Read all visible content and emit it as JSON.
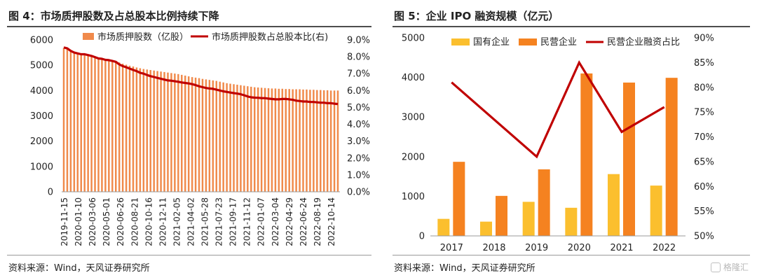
{
  "left": {
    "title": "图 4：市场质押股数及占总股本比例持续下降",
    "source": "资料来源：Wind，天风证券研究所",
    "chart_data": {
      "type": "bar",
      "legend": [
        "市场质押股数（亿股）",
        "市场质押股数占总股本比(右)"
      ],
      "y_left_ticks": [
        "0",
        "1000",
        "2000",
        "3000",
        "4000",
        "5000",
        "6000"
      ],
      "y_left_range": [
        0,
        6000
      ],
      "y_right_ticks": [
        "0.0%",
        "1.0%",
        "2.0%",
        "3.0%",
        "4.0%",
        "5.0%",
        "6.0%",
        "7.0%",
        "8.0%",
        "9.0%"
      ],
      "y_right_range": [
        0,
        9
      ],
      "x_ticks": [
        "2019-11-15",
        "2020-01-10",
        "2020-03-06",
        "2020-05-01",
        "2020-06-26",
        "2020-08-21",
        "2020-10-16",
        "2020-12-11",
        "2021-02-05",
        "2021-04-02",
        "2021-05-28",
        "2021-07-23",
        "2021-09-17",
        "2021-11-12",
        "2022-01-07",
        "2022-03-04",
        "2022-04-29",
        "2022-06-24",
        "2022-08-19",
        "2022-10-14"
      ],
      "series": [
        {
          "name": "市场质押股数（亿股）",
          "axis": "left",
          "values": [
            5680,
            5650,
            5600,
            5540,
            5480,
            5440,
            5410,
            5390,
            5360,
            5330,
            5290,
            5250,
            5220,
            5200,
            5180,
            5150,
            5110,
            5060,
            5020,
            4980,
            4950,
            4910,
            4880,
            4850,
            4830,
            4810,
            4790,
            4770,
            4750,
            4730,
            4710,
            4690,
            4670,
            4650,
            4620,
            4590,
            4560,
            4530,
            4510,
            4490,
            4460,
            4440,
            4420,
            4400,
            4380,
            4350,
            4320,
            4290,
            4270,
            4250,
            4230,
            4210,
            4190,
            4170,
            4150,
            4130,
            4120,
            4110,
            4100,
            4090,
            4080,
            4080,
            4070,
            4070,
            4060,
            4060,
            4050,
            4050,
            4050,
            4040,
            4040,
            4030,
            4030,
            4020,
            4020,
            4010,
            4010,
            4000,
            4000,
            4000
          ]
        },
        {
          "name": "市场质押股数占总股本比(右)",
          "axis": "right",
          "values": [
            8.55,
            8.5,
            8.35,
            8.25,
            8.2,
            8.15,
            8.15,
            8.1,
            8.05,
            7.98,
            7.9,
            7.88,
            7.82,
            7.8,
            7.75,
            7.7,
            7.55,
            7.45,
            7.38,
            7.3,
            7.22,
            7.15,
            7.05,
            7.0,
            6.92,
            6.85,
            6.8,
            6.75,
            6.7,
            6.65,
            6.6,
            6.58,
            6.55,
            6.52,
            6.48,
            6.45,
            6.42,
            6.38,
            6.32,
            6.25,
            6.2,
            6.15,
            6.12,
            6.1,
            6.05,
            6.0,
            5.95,
            5.92,
            5.88,
            5.85,
            5.82,
            5.78,
            5.72,
            5.65,
            5.6,
            5.58,
            5.57,
            5.55,
            5.55,
            5.52,
            5.5,
            5.48,
            5.48,
            5.5,
            5.5,
            5.48,
            5.45,
            5.4,
            5.38,
            5.35,
            5.35,
            5.32,
            5.32,
            5.3,
            5.28,
            5.28,
            5.25,
            5.25,
            5.22,
            5.2
          ]
        }
      ],
      "colors": {
        "bar": "#f08a4b",
        "line": "#c00000"
      }
    }
  },
  "right": {
    "title": "图 5：企业 IPO 融资规模（亿元）",
    "source": "资料来源：Wind，天风证券研究所",
    "chart_data": {
      "type": "bar",
      "categories": [
        "2017",
        "2018",
        "2019",
        "2020",
        "2021",
        "2022"
      ],
      "y_left_ticks": [
        "0",
        "1000",
        "2000",
        "3000",
        "4000",
        "5000"
      ],
      "y_left_range": [
        0,
        5000
      ],
      "y_right_ticks": [
        "50%",
        "55%",
        "60%",
        "65%",
        "70%",
        "75%",
        "80%",
        "85%",
        "90%"
      ],
      "y_right_range": [
        50,
        90
      ],
      "series": [
        {
          "name": "国有企业",
          "axis": "left",
          "color": "#fbbf2e",
          "values": [
            430,
            360,
            860,
            710,
            1560,
            1270
          ]
        },
        {
          "name": "民营企业",
          "axis": "left",
          "color": "#f58220",
          "values": [
            1870,
            1010,
            1680,
            4100,
            3870,
            3990
          ]
        },
        {
          "name": "民营企业融资占比",
          "axis": "right",
          "color": "#c00000",
          "values": [
            81,
            null,
            66,
            85,
            71,
            76
          ]
        }
      ]
    }
  },
  "watermark": "格隆汇"
}
